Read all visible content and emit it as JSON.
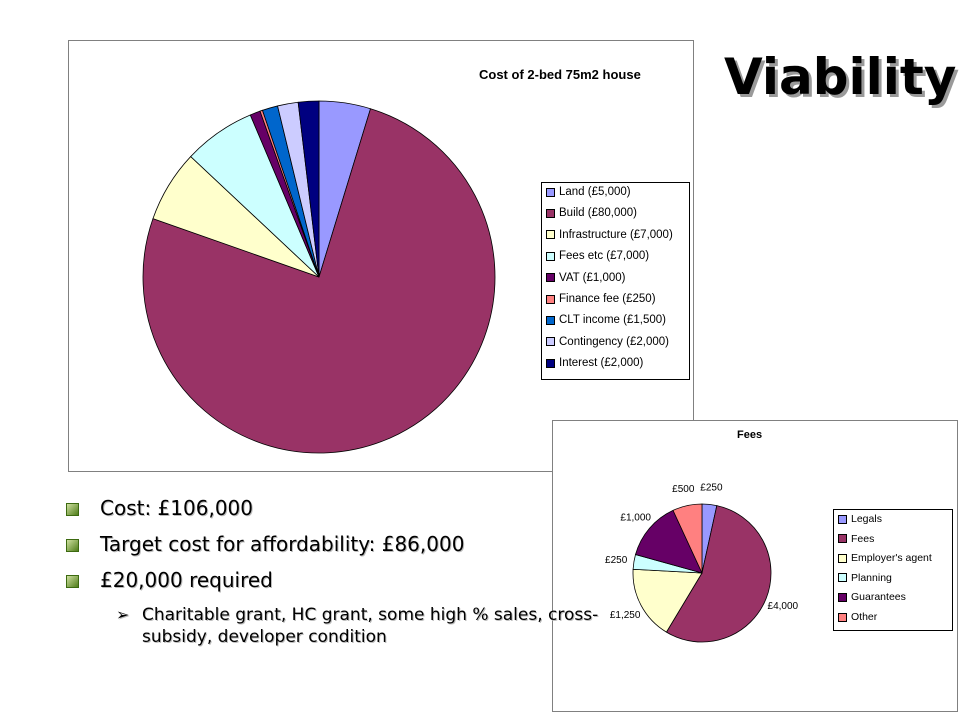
{
  "slide": {
    "title": "Viability",
    "bullets": [
      "Cost:  £106,000",
      "Target cost for affordability:  £86,000",
      "£20,000 required"
    ],
    "sub_marker": "➢",
    "sub_bullet": "Charitable grant, HC grant, some high % sales, cross-subsidy, developer condition"
  },
  "chart_data": [
    {
      "type": "pie",
      "title": "Cost of 2-bed 75m2 house",
      "legend_position": "right",
      "categories": [
        "Land (£5,000)",
        "Build (£80,000)",
        "Infrastructure (£7,000)",
        "Fees etc (£7,000)",
        "VAT (£1,000)",
        "Finance fee (£250)",
        "CLT income (£1,500)",
        "Contingency (£2,000)",
        "Interest (£2,000)"
      ],
      "values": [
        5000,
        80000,
        7000,
        7000,
        1000,
        250,
        1500,
        2000,
        2000
      ],
      "colors": [
        "#9999ff",
        "#993366",
        "#ffffcc",
        "#ccffff",
        "#660066",
        "#ff8080",
        "#0066cc",
        "#ccccff",
        "#000080"
      ]
    },
    {
      "type": "pie",
      "title": "Fees",
      "legend_position": "right",
      "categories": [
        "Legals",
        "Fees",
        "Employer's agent",
        "Planning",
        "Guarantees",
        "Other"
      ],
      "values": [
        250,
        4000,
        1250,
        250,
        1000,
        500
      ],
      "data_labels": [
        "£250",
        "£4,000",
        "£1,250",
        "£250",
        "£1,000",
        "£500"
      ],
      "colors": [
        "#9999ff",
        "#993366",
        "#ffffcc",
        "#ccffff",
        "#660066",
        "#ff8080"
      ]
    }
  ]
}
